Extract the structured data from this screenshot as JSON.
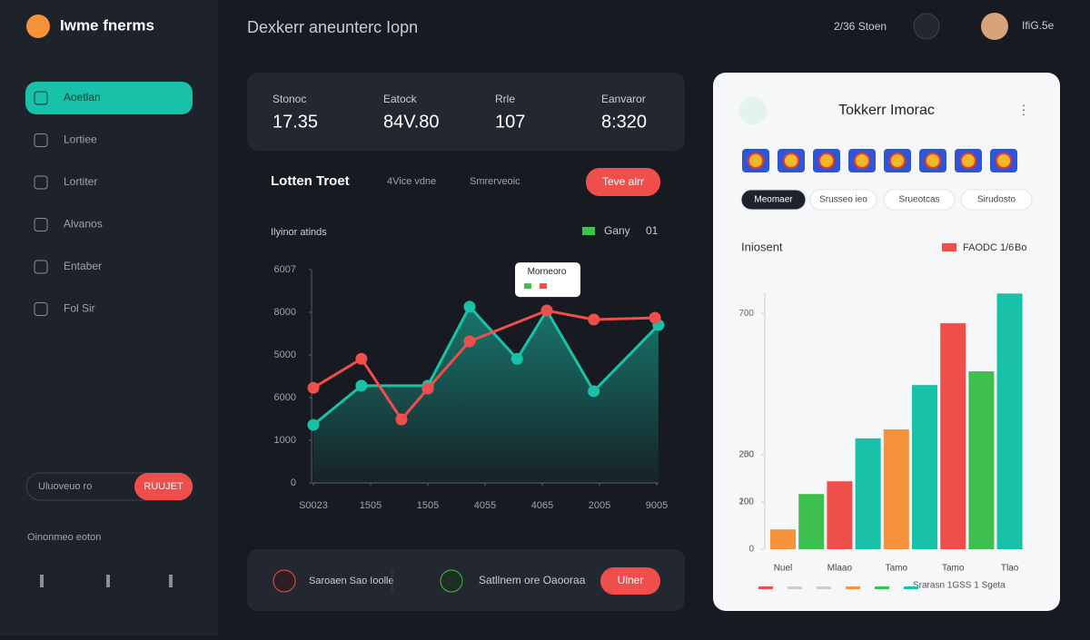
{
  "brand": "Iwme fnerms",
  "header": {
    "title": "Dexkerr aneunterc Iopn",
    "status": "2/36 Stoen",
    "user": "IfiG.5e"
  },
  "nav": {
    "items": [
      "Aoetlan",
      "Lortiee",
      "Lortiter",
      "Alvanos",
      "Entaber",
      "Fol Sir"
    ],
    "active": 0
  },
  "sidebar": {
    "input": "Uluoveuo ro",
    "button": "RUUJET",
    "footer": "Oinonmeo eoton"
  },
  "stats": [
    {
      "label": "Stonoc",
      "value": "17.35"
    },
    {
      "label": "Eatock",
      "value": "84V.80"
    },
    {
      "label": "Rrle",
      "value": "107"
    },
    {
      "label": "Eanvaror",
      "value": "8:320"
    }
  ],
  "line_chart": {
    "type": "line",
    "title": "Lotten Troet",
    "tabs": [
      "4Vice vdne",
      "Smrerveoic"
    ],
    "button": "Teve alrr",
    "subtitle": "Ilyinor atinds",
    "legend_value": "01",
    "tooltip": "Morneoro",
    "xlim": [
      0,
      6
    ],
    "xticks": [
      {
        "value": 0,
        "label": "S0023"
      },
      {
        "value": 1,
        "label": "1505"
      },
      {
        "value": 2,
        "label": "1505"
      },
      {
        "value": 3,
        "label": "4055"
      },
      {
        "value": 4,
        "label": "4065"
      },
      {
        "value": 5,
        "label": "2005"
      },
      {
        "value": 6,
        "label": "9005"
      }
    ],
    "ylim": [
      0,
      5000
    ],
    "yticks": [
      0,
      1000,
      {
        "value": 2000,
        "label": "6000"
      },
      {
        "value": 3000,
        "label": "5000"
      },
      {
        "value": 4000,
        "label": "8000"
      },
      {
        "value": 5000,
        "label": "6007"
      }
    ],
    "series": [
      {
        "name": "Gany",
        "color": "#18c2a8",
        "x": [
          0,
          0.84,
          2,
          2.73,
          3.56,
          4.08,
          4.9,
          6.03
        ],
        "values": [
          1360,
          2280,
          2280,
          4130,
          2910,
          4040,
          2150,
          3700
        ]
      },
      {
        "color": "#f04e4a",
        "x": [
          0,
          0.84,
          1.54,
          2,
          2.73,
          4.08,
          4.9,
          5.97
        ],
        "values": [
          2230,
          2910,
          1490,
          2210,
          3320,
          4040,
          3830,
          3870
        ]
      }
    ]
  },
  "panel": {
    "title": "Tokkerr Imorac",
    "tabs": [
      "Meomaer",
      "Srusseo ieo",
      "Srueotcas",
      "Sirudosto"
    ],
    "bar_chart": {
      "type": "bar",
      "title": "Iniosent",
      "legend": [
        "FAODC 1/6",
        "Bo"
      ],
      "footer": "Srarasn 1GSS 1 Sgeta",
      "categories": [
        "Nuel",
        null,
        "Mlaao",
        null,
        "Tamo",
        null,
        "Tamo",
        null,
        "Tlao"
      ],
      "values": [
        42,
        117,
        144,
        235,
        254,
        348,
        479,
        377,
        542
      ],
      "colors": [
        "#f5923a",
        "#3ec04e",
        "#f04e4a",
        "#18c2a8",
        "#f5923a",
        "#18c2a8",
        "#f04e4a",
        "#3ec04e",
        "#18c2a8"
      ],
      "ylim": [
        0,
        560
      ],
      "yticks": [
        0,
        {
          "value": 100,
          "label": "200"
        },
        {
          "value": 200,
          "label": "250"
        },
        100,
        200,
        {
          "value": 500,
          "label": "700"
        }
      ]
    }
  },
  "bottom": {
    "items": [
      "Saroaen Sao Ioolle",
      "Satllnem ore Oaooraa"
    ],
    "button": "Ulner"
  }
}
